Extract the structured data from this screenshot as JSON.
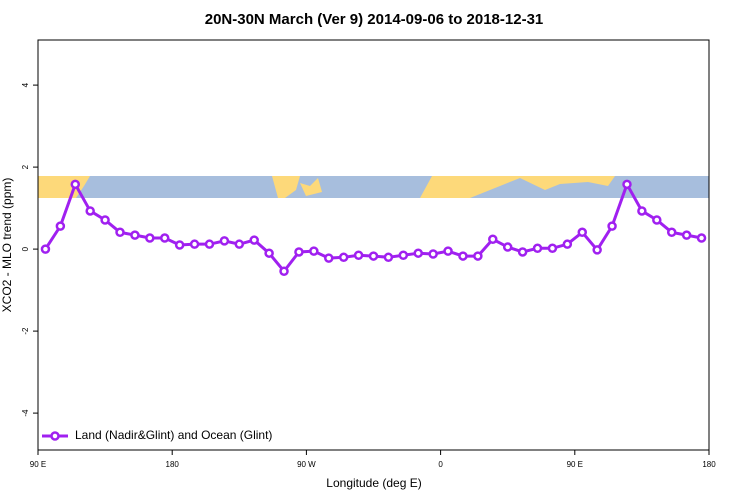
{
  "chart_data": {
    "type": "line",
    "title": "20N-30N March (Ver 9)   2014-09-06 to 2018-12-31",
    "x_label": "Longitude (deg E)",
    "y_label": "XCO2 - MLO trend (ppm)",
    "x": [
      95,
      105,
      115,
      125,
      135,
      145,
      155,
      165,
      175,
      185,
      195,
      205,
      215,
      225,
      235,
      245,
      255,
      265,
      275,
      285,
      295,
      305,
      315,
      325,
      335,
      345,
      355,
      365,
      375,
      385,
      395,
      405,
      415,
      425,
      435,
      445,
      455,
      465,
      475,
      485,
      495,
      505,
      515,
      525,
      535
    ],
    "series": [
      {
        "name": "Land (Nadir&Glint) and Ocean (Glint)",
        "color": "#a020f0",
        "values": [
          0.0,
          0.56,
          1.58,
          0.93,
          0.71,
          0.41,
          0.34,
          0.27,
          0.27,
          0.1,
          0.12,
          0.12,
          0.2,
          0.12,
          0.22,
          -0.1,
          -0.54,
          -0.07,
          -0.05,
          -0.22,
          -0.2,
          -0.15,
          -0.17,
          -0.2,
          -0.15,
          -0.1,
          -0.12,
          -0.05,
          -0.17,
          -0.17,
          0.24,
          0.05,
          -0.07,
          0.02,
          0.02,
          0.12,
          0.41,
          -0.02,
          0.56,
          1.58,
          0.93,
          0.71,
          0.41,
          0.34,
          0.27
        ]
      }
    ],
    "xlim": [
      90,
      540
    ],
    "xticks": [
      {
        "value": 90,
        "label": "90 E"
      },
      180,
      {
        "value": 270,
        "label": "90 W"
      },
      {
        "value": 360,
        "label": "0"
      },
      {
        "value": 450,
        "label": "90 E"
      },
      {
        "value": 540,
        "label": "180"
      }
    ],
    "ylim": [
      -4.9,
      5.1
    ],
    "yticks": [
      -4,
      -2,
      0,
      2,
      4
    ],
    "legend": "bottom-left"
  }
}
